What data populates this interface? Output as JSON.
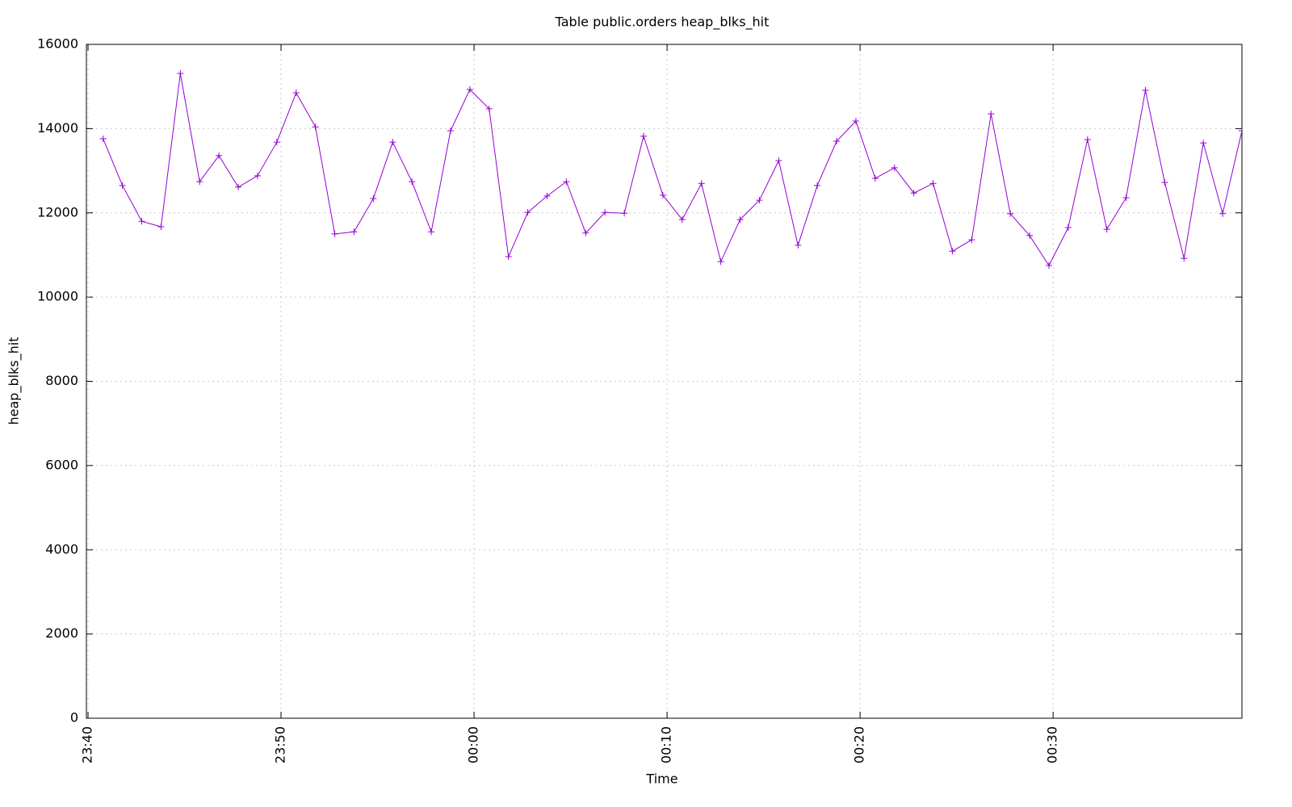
{
  "chart_data": {
    "type": "line",
    "title": "Table public.orders heap_blks_hit",
    "x_label": "Time",
    "y_label": "heap_blks_hit",
    "color": "#9400d3",
    "grid": true,
    "marker": "+",
    "x": [
      "23:40:47",
      "23:41:47",
      "23:42:47",
      "23:43:47",
      "23:44:47",
      "23:45:47",
      "23:46:47",
      "23:47:47",
      "23:48:47",
      "23:49:47",
      "23:50:47",
      "23:51:47",
      "23:52:47",
      "23:53:47",
      "23:54:47",
      "23:55:47",
      "23:56:47",
      "23:57:47",
      "23:58:47",
      "23:59:47",
      "00:00:47",
      "00:01:47",
      "00:02:47",
      "00:03:47",
      "00:04:47",
      "00:05:47",
      "00:06:47",
      "00:07:47",
      "00:08:47",
      "00:09:47",
      "00:10:47",
      "00:11:47",
      "00:12:47",
      "00:13:47",
      "00:14:47",
      "00:15:47",
      "00:16:47",
      "00:17:47",
      "00:18:47",
      "00:19:47",
      "00:20:47",
      "00:21:47",
      "00:22:47",
      "00:23:47",
      "00:24:47",
      "00:25:47",
      "00:26:47",
      "00:27:47",
      "00:28:47",
      "00:29:47",
      "00:30:47",
      "00:31:47",
      "00:32:47",
      "00:33:47",
      "00:34:47",
      "00:35:47",
      "00:36:47",
      "00:37:47",
      "00:38:47",
      "00:39:47"
    ],
    "values": [
      13760,
      12650,
      11800,
      11670,
      15310,
      12740,
      13360,
      12610,
      12880,
      13680,
      14850,
      14040,
      11500,
      11550,
      12340,
      13680,
      12740,
      11550,
      13950,
      14930,
      14470,
      10960,
      12010,
      12400,
      12740,
      11520,
      12010,
      11990,
      13820,
      12420,
      11840,
      12700,
      10840,
      11840,
      12300,
      13240,
      11230,
      12650,
      13700,
      14180,
      12820,
      13070,
      12470,
      12700,
      11090,
      11360,
      14350,
      11980,
      11460,
      10750,
      11650,
      13740,
      11610,
      12360,
      14910,
      12720,
      10920,
      13660,
      11980,
      13950
    ],
    "xlim": [
      "23:39:55",
      "00:39:47"
    ],
    "xticks": [
      "23:40",
      "23:50",
      "00:00",
      "00:10",
      "00:20",
      "00:30"
    ],
    "ylim": [
      0,
      16000
    ],
    "yticks": [
      0,
      2000,
      4000,
      6000,
      8000,
      10000,
      12000,
      14000,
      16000
    ]
  }
}
